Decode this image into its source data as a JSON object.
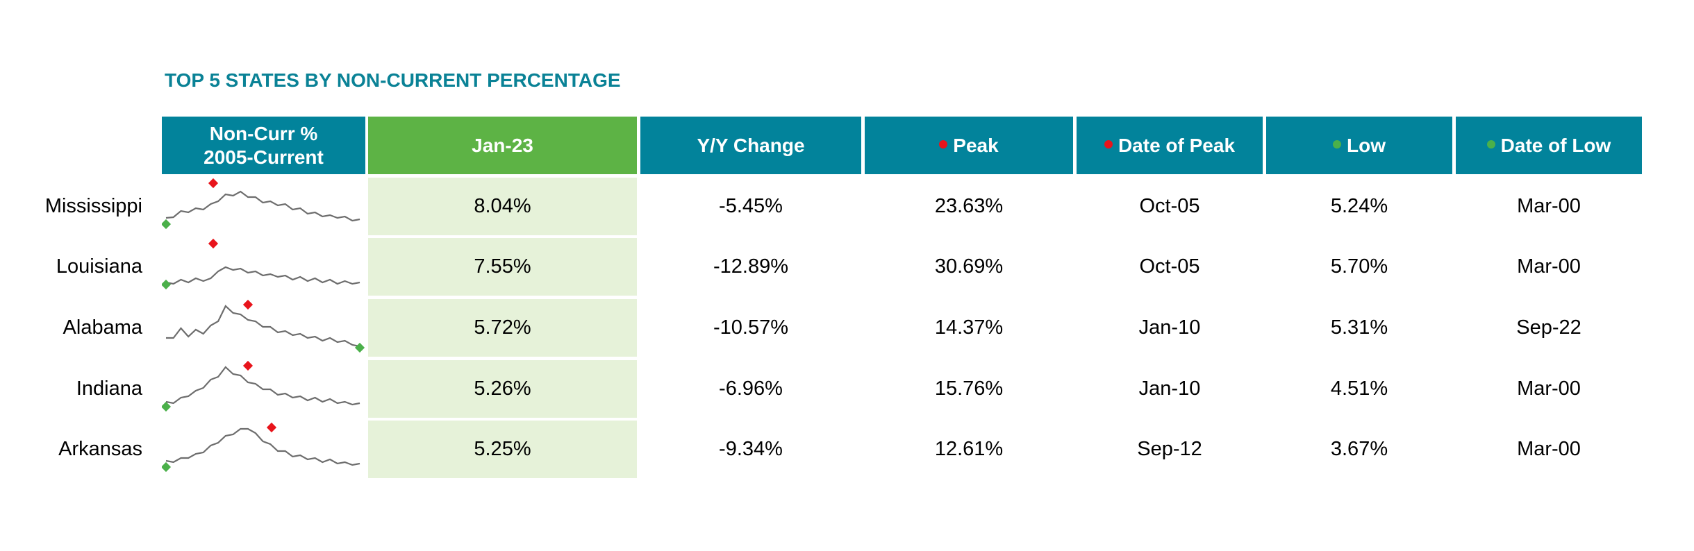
{
  "title": "TOP 5 STATES BY NON-CURRENT PERCENTAGE",
  "colors": {
    "header": "#02839b",
    "header_accent": "#5db345",
    "peak_marker": "#e8141b",
    "low_marker": "#4bb04a",
    "highlight_fill": "#e6f2d9"
  },
  "headers": {
    "spark_line1": "Non-Curr %",
    "spark_line2": "2005-Current",
    "jan": "Jan-23",
    "yy": "Y/Y Change",
    "peak": "Peak",
    "date_peak": "Date of Peak",
    "low": "Low",
    "date_low": "Date of Low"
  },
  "chart_data": {
    "type": "table",
    "rows": [
      {
        "state": "Mississippi",
        "jan": "8.04%",
        "yy": "-5.45%",
        "peak": "23.63%",
        "date_peak": "Oct-05",
        "low": "5.24%",
        "date_low": "Mar-00"
      },
      {
        "state": "Louisiana",
        "jan": "7.55%",
        "yy": "-12.89%",
        "peak": "30.69%",
        "date_peak": "Oct-05",
        "low": "5.70%",
        "date_low": "Mar-00"
      },
      {
        "state": "Alabama",
        "jan": "5.72%",
        "yy": "-10.57%",
        "peak": "14.37%",
        "date_peak": "Jan-10",
        "low": "5.31%",
        "date_low": "Sep-22"
      },
      {
        "state": "Indiana",
        "jan": "5.26%",
        "yy": "-6.96%",
        "peak": "15.76%",
        "date_peak": "Jan-10",
        "low": "4.51%",
        "date_low": "Mar-00"
      },
      {
        "state": "Arkansas",
        "jan": "5.25%",
        "yy": "-9.34%",
        "peak": "12.61%",
        "date_peak": "Sep-12",
        "low": "3.67%",
        "date_low": "Mar-00"
      }
    ]
  }
}
